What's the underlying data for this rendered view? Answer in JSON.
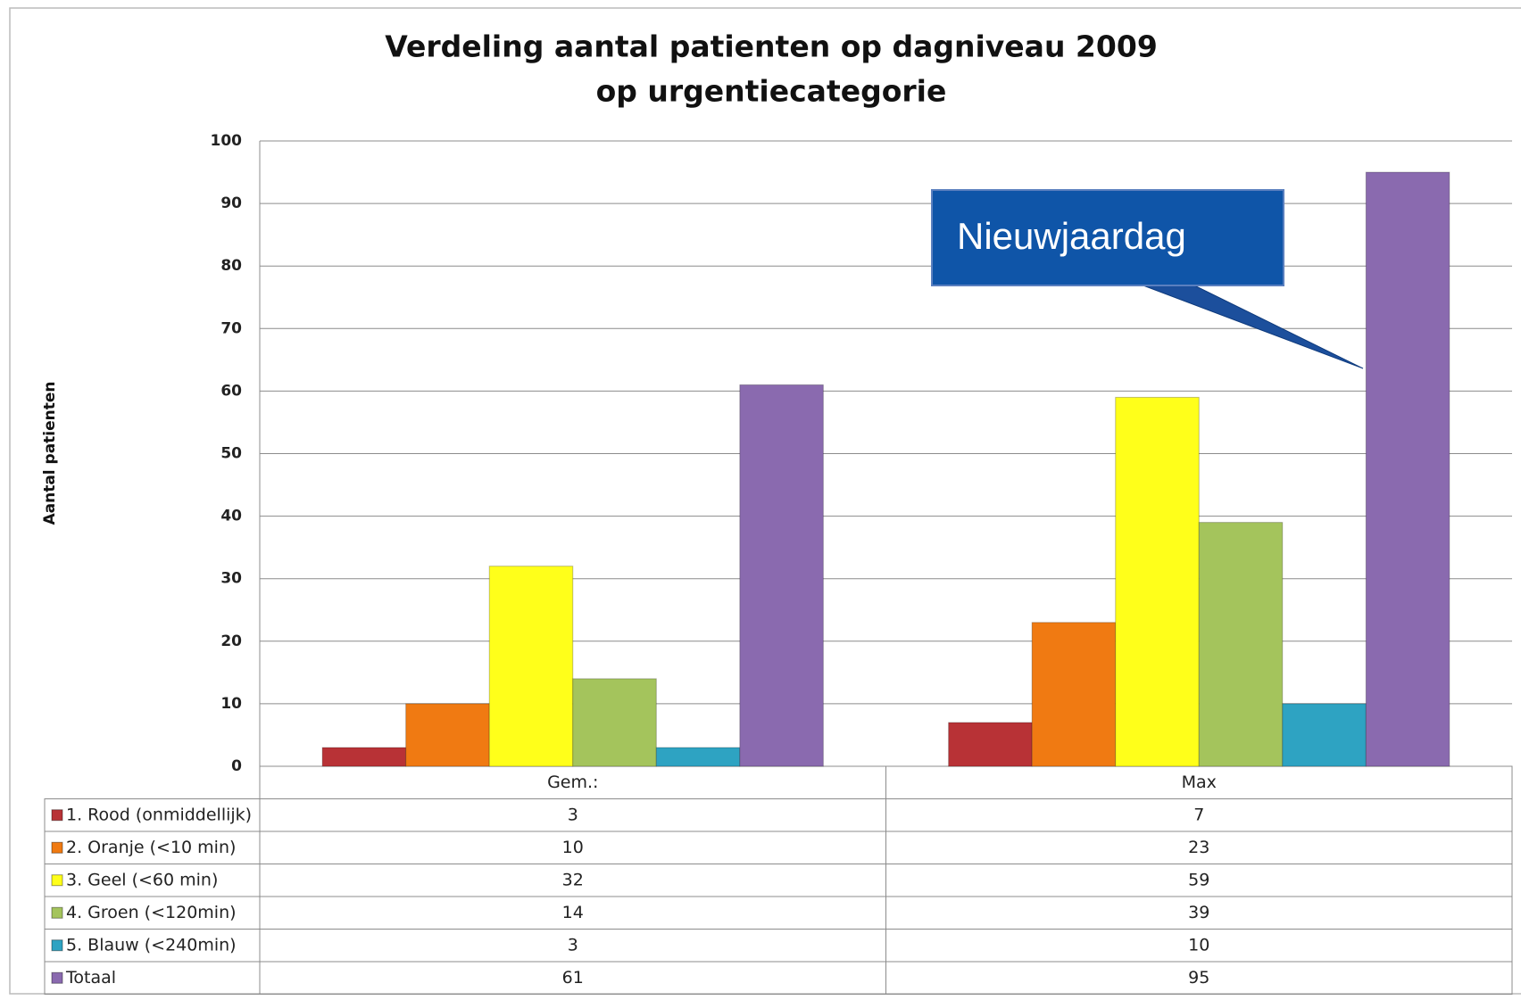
{
  "chart_data": {
    "type": "bar",
    "title": [
      "Verdeling aantal patienten op dagniveau 2009",
      "op urgentiecategorie"
    ],
    "y_label": "Aantal patienten",
    "annotation": "Nieuwjaardag",
    "categories": [
      "Gem.:",
      "Max"
    ],
    "series": [
      {
        "name": "1. Rood (onmiddellijk)",
        "color": "#b83236",
        "values": [
          3,
          7
        ]
      },
      {
        "name": "2. Oranje (<10 min)",
        "color": "#f07a12",
        "values": [
          10,
          23
        ]
      },
      {
        "name": "3. Geel (<60 min)",
        "color": "#ffff1a",
        "values": [
          32,
          59
        ]
      },
      {
        "name": "4. Groen (<120min)",
        "color": "#a4c45c",
        "values": [
          14,
          39
        ]
      },
      {
        "name": "5. Blauw (<240min)",
        "color": "#2ea3c2",
        "values": [
          3,
          10
        ]
      },
      {
        "name": "Totaal",
        "color": "#8a6aaf",
        "values": [
          61,
          95
        ]
      }
    ],
    "ylim": [
      0,
      100
    ],
    "yticks": [
      0,
      10,
      20,
      30,
      40,
      50,
      60,
      70,
      80,
      90,
      100
    ],
    "grid": true
  }
}
